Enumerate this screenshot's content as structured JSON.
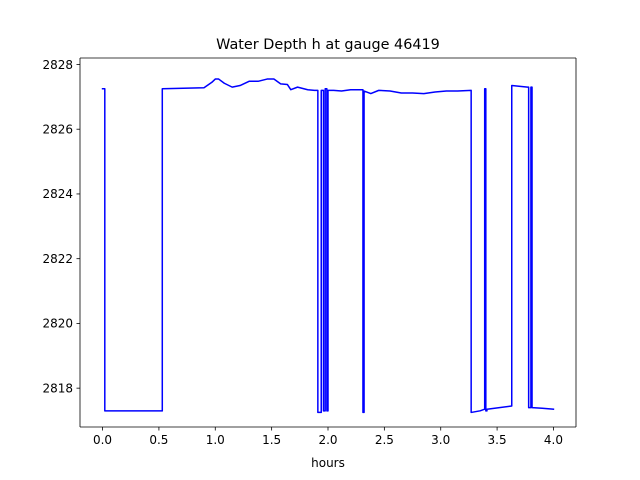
{
  "chart_data": {
    "type": "line",
    "title": "Water Depth h at gauge 46419",
    "xlabel": "hours",
    "ylabel": "",
    "xlim": [
      -0.2,
      4.2
    ],
    "ylim": [
      2816.8,
      2828.2
    ],
    "xticks": [
      0.0,
      0.5,
      1.0,
      1.5,
      2.0,
      2.5,
      3.0,
      3.5,
      4.0
    ],
    "xtick_labels": [
      "0.0",
      "0.5",
      "1.0",
      "1.5",
      "2.0",
      "2.5",
      "3.0",
      "3.5",
      "4.0"
    ],
    "yticks": [
      2818,
      2820,
      2822,
      2824,
      2826,
      2828
    ],
    "ytick_labels": [
      "2818",
      "2820",
      "2822",
      "2824",
      "2826",
      "2828"
    ],
    "grid": false,
    "series": [
      {
        "color": "#0000ff",
        "x": [
          0.0,
          0.02,
          0.02,
          0.53,
          0.53,
          0.9,
          0.97,
          1.0,
          1.03,
          1.08,
          1.15,
          1.22,
          1.3,
          1.38,
          1.46,
          1.52,
          1.58,
          1.64,
          1.67,
          1.73,
          1.82,
          1.88,
          1.91,
          1.91,
          1.94,
          1.94,
          1.96,
          1.96,
          1.975,
          1.975,
          1.99,
          1.99,
          2.0,
          2.0,
          2.05,
          2.12,
          2.2,
          2.3,
          2.31,
          2.31,
          2.32,
          2.32,
          2.38,
          2.45,
          2.55,
          2.65,
          2.75,
          2.85,
          2.95,
          3.05,
          3.15,
          3.27,
          3.27,
          3.35,
          3.39,
          3.39,
          3.4,
          3.4,
          3.41,
          3.41,
          3.63,
          3.63,
          3.77,
          3.78,
          3.78,
          3.8,
          3.8,
          3.81,
          3.81,
          3.9,
          4.0
        ],
        "y": [
          2827.25,
          2827.25,
          2817.3,
          2817.3,
          2827.25,
          2827.28,
          2827.45,
          2827.55,
          2827.55,
          2827.42,
          2827.3,
          2827.35,
          2827.48,
          2827.48,
          2827.55,
          2827.55,
          2827.4,
          2827.38,
          2827.22,
          2827.3,
          2827.22,
          2827.2,
          2827.2,
          2817.25,
          2817.25,
          2827.2,
          2827.2,
          2817.3,
          2817.3,
          2827.25,
          2827.25,
          2817.3,
          2817.3,
          2827.2,
          2827.2,
          2827.18,
          2827.22,
          2827.22,
          2827.22,
          2817.25,
          2817.25,
          2827.18,
          2827.1,
          2827.2,
          2827.18,
          2827.12,
          2827.12,
          2827.1,
          2827.15,
          2827.18,
          2827.18,
          2827.2,
          2817.25,
          2817.3,
          2817.35,
          2827.25,
          2827.25,
          2817.3,
          2817.3,
          2817.35,
          2817.45,
          2827.35,
          2827.3,
          2827.3,
          2817.4,
          2817.4,
          2827.3,
          2827.3,
          2817.4,
          2817.38,
          2817.35
        ]
      }
    ]
  }
}
